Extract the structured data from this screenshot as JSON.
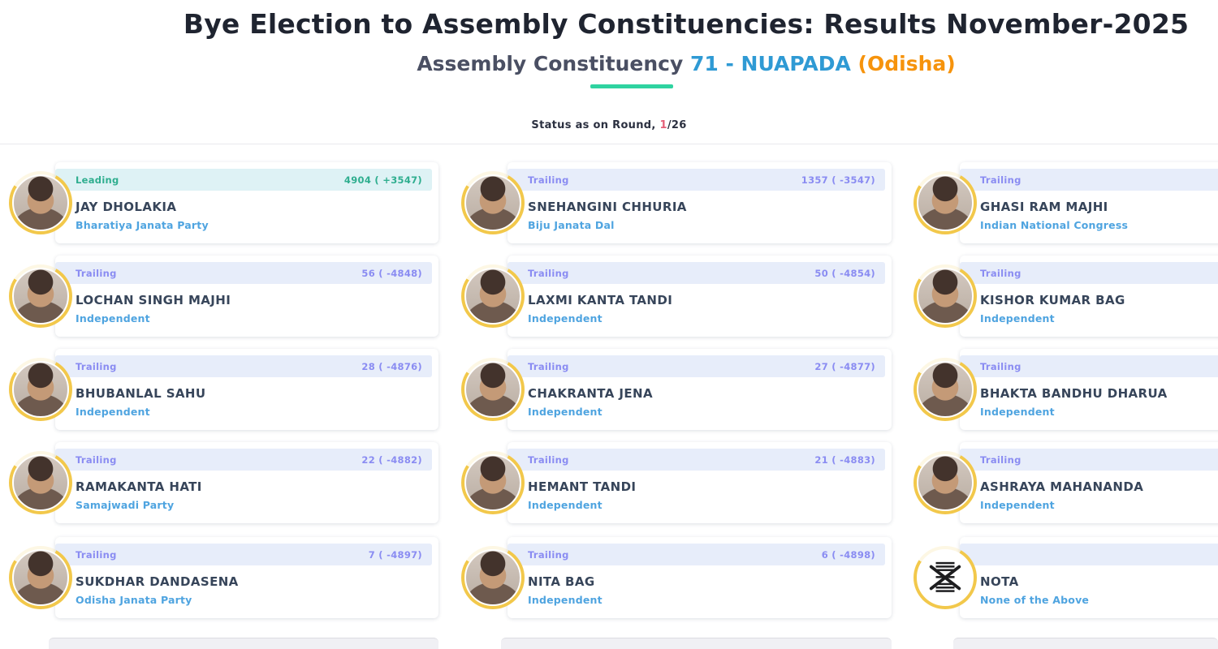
{
  "header": {
    "title": "Bye Election to Assembly Constituencies: Results November-2025",
    "subtitle_prefix": "Assembly Constituency ",
    "constituency_number": "71",
    "subtitle_sep": " - ",
    "constituency_name": "NUAPADA",
    "state": "(Odisha)",
    "status_prefix": "Status as on Round, ",
    "round_current": "1",
    "round_total": "/26"
  },
  "colors": {
    "accent_blue": "#2f9ad4",
    "accent_orange": "#f6930c",
    "underline_green": "#2fd3a0",
    "leading_green": "#2fae8f",
    "trailing_purple": "#8a8cf2",
    "strip_leading_bg": "#def2f5",
    "strip_trailing_bg": "#e7edfa",
    "party_blue": "#4fa4e0",
    "round_red": "#e45f78"
  },
  "cards": [
    {
      "status": "Leading",
      "votes": "4904 ( +3547)",
      "name": "JAY DHOLAKIA",
      "party": "Bharatiya Janata Party",
      "leading": true,
      "nota": false
    },
    {
      "status": "Trailing",
      "votes": "1357 ( -3547)",
      "name": "SNEHANGINI CHHURIA",
      "party": "Biju Janata Dal",
      "leading": false,
      "nota": false
    },
    {
      "status": "Trailing",
      "votes": "",
      "name": "GHASI RAM MAJHI",
      "party": "Indian National Congress",
      "leading": false,
      "nota": false
    },
    {
      "status": "Trailing",
      "votes": "56 ( -4848)",
      "name": "LOCHAN SINGH MAJHI",
      "party": "Independent",
      "leading": false,
      "nota": false
    },
    {
      "status": "Trailing",
      "votes": "50 ( -4854)",
      "name": "LAXMI KANTA TANDI",
      "party": "Independent",
      "leading": false,
      "nota": false
    },
    {
      "status": "Trailing",
      "votes": "",
      "name": "KISHOR KUMAR BAG",
      "party": "Independent",
      "leading": false,
      "nota": false
    },
    {
      "status": "Trailing",
      "votes": "28 ( -4876)",
      "name": "BHUBANLAL SAHU",
      "party": "Independent",
      "leading": false,
      "nota": false
    },
    {
      "status": "Trailing",
      "votes": "27 ( -4877)",
      "name": "CHAKRANTA JENA",
      "party": "Independent",
      "leading": false,
      "nota": false
    },
    {
      "status": "Trailing",
      "votes": "",
      "name": "BHAKTA BANDHU DHARUA",
      "party": "Independent",
      "leading": false,
      "nota": false
    },
    {
      "status": "Trailing",
      "votes": "22 ( -4882)",
      "name": "RAMAKANTA HATI",
      "party": "Samajwadi Party",
      "leading": false,
      "nota": false
    },
    {
      "status": "Trailing",
      "votes": "21 ( -4883)",
      "name": "HEMANT TANDI",
      "party": "Independent",
      "leading": false,
      "nota": false
    },
    {
      "status": "Trailing",
      "votes": "",
      "name": "ASHRAYA MAHANANDA",
      "party": "Independent",
      "leading": false,
      "nota": false
    },
    {
      "status": "Trailing",
      "votes": "7 ( -4897)",
      "name": "SUKDHAR DANDASENA",
      "party": "Odisha Janata Party",
      "leading": false,
      "nota": false
    },
    {
      "status": "Trailing",
      "votes": "6 ( -4898)",
      "name": "NITA BAG",
      "party": "Independent",
      "leading": false,
      "nota": false
    },
    {
      "status": "",
      "votes": "",
      "name": "NOTA",
      "party": "None of the Above",
      "leading": false,
      "nota": true
    }
  ]
}
